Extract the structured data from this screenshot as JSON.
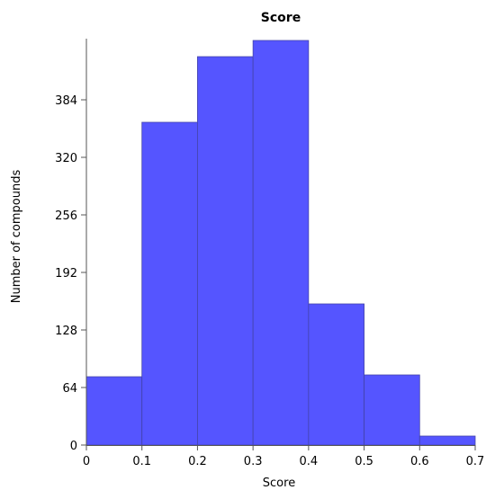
{
  "chart_data": {
    "type": "bar",
    "title": "Score",
    "xlabel": "Score",
    "ylabel": "Number of compounds",
    "bins": [
      {
        "start": 0.0,
        "end": 0.1,
        "count": 76
      },
      {
        "start": 0.1,
        "end": 0.2,
        "count": 359
      },
      {
        "start": 0.2,
        "end": 0.3,
        "count": 432
      },
      {
        "start": 0.3,
        "end": 0.4,
        "count": 450
      },
      {
        "start": 0.4,
        "end": 0.5,
        "count": 157
      },
      {
        "start": 0.5,
        "end": 0.6,
        "count": 78
      },
      {
        "start": 0.6,
        "end": 0.7,
        "count": 10
      }
    ],
    "xticks": [
      "0",
      "0.1",
      "0.2",
      "0.3",
      "0.4",
      "0.5",
      "0.6",
      "0.7"
    ],
    "yticks": [
      "0",
      "64",
      "128",
      "192",
      "256",
      "320",
      "384"
    ],
    "xlim": [
      0,
      0.7
    ],
    "ylim": [
      0,
      450
    ],
    "grid": false,
    "legend": "none",
    "bar_color": "#5555ff"
  }
}
